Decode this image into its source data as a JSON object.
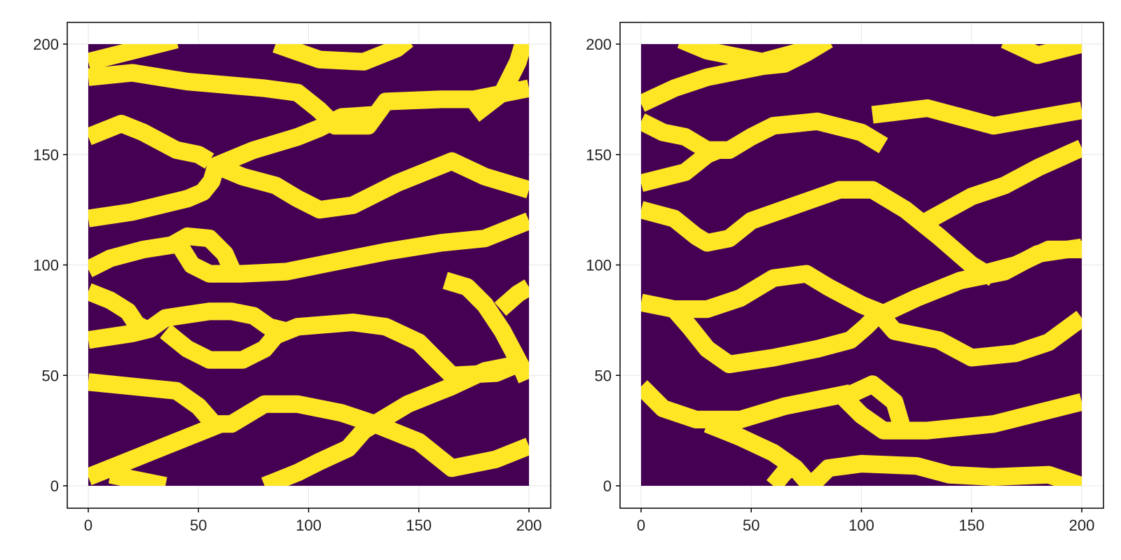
{
  "colors": {
    "background": "#ffffff",
    "matrix_zero": "#440154",
    "matrix_one": "#fde725",
    "grid": "#e6e6e6",
    "frame": "#000000"
  },
  "chart_data": [
    {
      "type": "heatmap",
      "title": "",
      "xlabel": "",
      "ylabel": "",
      "x_range": [
        0,
        200
      ],
      "y_range": [
        0,
        200
      ],
      "xlim": [
        -10,
        210
      ],
      "ylim": [
        -10,
        210
      ],
      "x_ticks": [
        "0",
        "50",
        "100",
        "150",
        "200"
      ],
      "y_ticks": [
        "0",
        "50",
        "100",
        "150",
        "200"
      ],
      "grid": true,
      "colormap": "viridis",
      "value_range": [
        0,
        1
      ],
      "band_width": 8,
      "channels": [
        [
          [
            0,
            192
          ],
          [
            20,
            197
          ],
          [
            40,
            202
          ]
        ],
        [
          [
            0,
            185
          ],
          [
            20,
            187
          ],
          [
            45,
            183
          ],
          [
            80,
            180
          ],
          [
            95,
            178
          ],
          [
            105,
            170
          ],
          [
            112,
            163
          ],
          [
            127,
            163
          ],
          [
            135,
            174
          ],
          [
            160,
            175
          ],
          [
            175,
            175
          ],
          [
            200,
            180
          ]
        ],
        [
          [
            85,
            200
          ],
          [
            105,
            193
          ],
          [
            125,
            192
          ],
          [
            140,
            198
          ],
          [
            145,
            202
          ]
        ],
        [
          [
            0,
            158
          ],
          [
            15,
            164
          ],
          [
            25,
            160
          ],
          [
            40,
            152
          ],
          [
            50,
            150
          ],
          [
            55,
            147
          ]
        ],
        [
          [
            0,
            121
          ],
          [
            20,
            124
          ],
          [
            45,
            130
          ],
          [
            52,
            133
          ],
          [
            56,
            138
          ],
          [
            58,
            145
          ],
          [
            75,
            152
          ],
          [
            95,
            158
          ],
          [
            105,
            162
          ],
          [
            115,
            167
          ],
          [
            130,
            168
          ]
        ],
        [
          [
            58,
            145
          ],
          [
            70,
            140
          ],
          [
            85,
            136
          ],
          [
            95,
            130
          ],
          [
            105,
            125
          ],
          [
            120,
            127
          ],
          [
            140,
            137
          ],
          [
            155,
            143
          ],
          [
            165,
            147
          ],
          [
            180,
            140
          ],
          [
            200,
            134
          ]
        ],
        [
          [
            175,
            168
          ],
          [
            188,
            178
          ],
          [
            195,
            192
          ],
          [
            198,
            202
          ]
        ],
        [
          [
            0,
            98
          ],
          [
            10,
            103
          ],
          [
            25,
            107
          ],
          [
            38,
            109
          ],
          [
            45,
            113
          ],
          [
            55,
            112
          ],
          [
            62,
            105
          ],
          [
            66,
            96
          ]
        ],
        [
          [
            42,
            108
          ],
          [
            47,
            100
          ],
          [
            55,
            96
          ],
          [
            70,
            96
          ],
          [
            90,
            97
          ],
          [
            110,
            101
          ],
          [
            135,
            106
          ],
          [
            160,
            110
          ],
          [
            180,
            112
          ],
          [
            200,
            120
          ]
        ],
        [
          [
            0,
            88
          ],
          [
            10,
            84
          ],
          [
            18,
            79
          ],
          [
            22,
            73
          ],
          [
            28,
            70
          ]
        ],
        [
          [
            0,
            66
          ],
          [
            20,
            69
          ],
          [
            28,
            71
          ],
          [
            35,
            76
          ],
          [
            55,
            79
          ],
          [
            65,
            79
          ],
          [
            75,
            77
          ],
          [
            82,
            72
          ],
          [
            90,
            70
          ]
        ],
        [
          [
            35,
            70
          ],
          [
            45,
            62
          ],
          [
            55,
            57
          ],
          [
            70,
            57
          ],
          [
            80,
            62
          ],
          [
            85,
            68
          ],
          [
            95,
            72
          ],
          [
            120,
            74
          ],
          [
            135,
            72
          ],
          [
            150,
            65
          ],
          [
            165,
            50
          ],
          [
            185,
            51
          ],
          [
            197,
            56
          ]
        ],
        [
          [
            162,
            93
          ],
          [
            172,
            90
          ],
          [
            180,
            82
          ],
          [
            188,
            70
          ],
          [
            196,
            55
          ],
          [
            199,
            48
          ]
        ],
        [
          [
            187,
            80
          ],
          [
            195,
            87
          ],
          [
            200,
            90
          ]
        ],
        [
          [
            0,
            47
          ],
          [
            20,
            45
          ],
          [
            40,
            43
          ],
          [
            50,
            36
          ],
          [
            57,
            28
          ],
          [
            65,
            28
          ],
          [
            80,
            37
          ],
          [
            95,
            37
          ],
          [
            115,
            33
          ],
          [
            130,
            28
          ],
          [
            150,
            20
          ],
          [
            165,
            8
          ],
          [
            185,
            12
          ],
          [
            200,
            18
          ]
        ],
        [
          [
            0,
            4
          ],
          [
            15,
            10
          ],
          [
            35,
            18
          ],
          [
            55,
            26
          ],
          [
            60,
            28
          ]
        ],
        [
          [
            80,
            0
          ],
          [
            95,
            6
          ],
          [
            105,
            11
          ],
          [
            118,
            17
          ],
          [
            125,
            25
          ],
          [
            130,
            28
          ],
          [
            145,
            37
          ],
          [
            165,
            45
          ],
          [
            180,
            52
          ],
          [
            195,
            55
          ]
        ],
        [
          [
            10,
            5
          ],
          [
            20,
            3
          ],
          [
            35,
            0
          ]
        ]
      ]
    },
    {
      "type": "heatmap",
      "title": "",
      "xlabel": "",
      "ylabel": "",
      "x_range": [
        0,
        200
      ],
      "y_range": [
        0,
        200
      ],
      "xlim": [
        -10,
        210
      ],
      "ylim": [
        -10,
        210
      ],
      "x_ticks": [
        "0",
        "50",
        "100",
        "150",
        "200"
      ],
      "y_ticks": [
        "0",
        "50",
        "100",
        "150",
        "200"
      ],
      "grid": true,
      "colormap": "viridis",
      "value_range": [
        0,
        1
      ],
      "band_width": 8,
      "channels": [
        [
          [
            18,
            202
          ],
          [
            30,
            197
          ],
          [
            45,
            194
          ],
          [
            55,
            192
          ],
          [
            70,
            196
          ],
          [
            80,
            200
          ]
        ],
        [
          [
            0,
            173
          ],
          [
            15,
            180
          ],
          [
            30,
            185
          ],
          [
            45,
            188
          ],
          [
            55,
            190
          ],
          [
            65,
            191
          ],
          [
            75,
            196
          ],
          [
            85,
            202
          ]
        ],
        [
          [
            0,
            165
          ],
          [
            10,
            160
          ],
          [
            20,
            158
          ],
          [
            30,
            152
          ],
          [
            40,
            152
          ],
          [
            50,
            158
          ],
          [
            60,
            163
          ],
          [
            80,
            165
          ],
          [
            100,
            160
          ],
          [
            110,
            154
          ]
        ],
        [
          [
            0,
            137
          ],
          [
            20,
            142
          ],
          [
            30,
            150
          ],
          [
            35,
            152
          ]
        ],
        [
          [
            105,
            168
          ],
          [
            130,
            171
          ],
          [
            160,
            163
          ],
          [
            200,
            170
          ]
        ],
        [
          [
            165,
            202
          ],
          [
            180,
            195
          ],
          [
            200,
            200
          ]
        ],
        [
          [
            0,
            125
          ],
          [
            15,
            121
          ],
          [
            25,
            113
          ],
          [
            30,
            110
          ],
          [
            40,
            112
          ],
          [
            50,
            120
          ],
          [
            70,
            127
          ],
          [
            90,
            134
          ],
          [
            105,
            134
          ],
          [
            120,
            125
          ],
          [
            135,
            113
          ],
          [
            150,
            100
          ],
          [
            160,
            94
          ]
        ],
        [
          [
            130,
            120
          ],
          [
            150,
            131
          ],
          [
            165,
            136
          ],
          [
            180,
            144
          ],
          [
            200,
            153
          ]
        ],
        [
          [
            155,
            96
          ],
          [
            170,
            100
          ],
          [
            185,
            107
          ],
          [
            200,
            107
          ]
        ],
        [
          [
            0,
            83
          ],
          [
            15,
            80
          ],
          [
            30,
            80
          ],
          [
            45,
            85
          ],
          [
            60,
            94
          ],
          [
            75,
            96
          ],
          [
            85,
            90
          ],
          [
            100,
            82
          ],
          [
            110,
            78
          ],
          [
            125,
            85
          ],
          [
            145,
            93
          ],
          [
            165,
            97
          ],
          [
            180,
            105
          ],
          [
            200,
            108
          ]
        ],
        [
          [
            15,
            80
          ],
          [
            22,
            72
          ],
          [
            30,
            62
          ],
          [
            40,
            55
          ],
          [
            60,
            58
          ],
          [
            80,
            62
          ],
          [
            95,
            66
          ],
          [
            102,
            72
          ],
          [
            108,
            78
          ],
          [
            115,
            70
          ],
          [
            135,
            66
          ],
          [
            150,
            58
          ],
          [
            170,
            60
          ],
          [
            185,
            65
          ],
          [
            200,
            76
          ]
        ],
        [
          [
            0,
            45
          ],
          [
            10,
            35
          ],
          [
            25,
            30
          ],
          [
            45,
            30
          ],
          [
            65,
            36
          ],
          [
            85,
            40
          ],
          [
            95,
            42
          ]
        ],
        [
          [
            92,
            40
          ],
          [
            100,
            32
          ],
          [
            110,
            25
          ],
          [
            130,
            25
          ],
          [
            160,
            28
          ],
          [
            180,
            33
          ],
          [
            200,
            38
          ]
        ],
        [
          [
            92,
            40
          ],
          [
            105,
            46
          ],
          [
            115,
            38
          ],
          [
            118,
            28
          ]
        ],
        [
          [
            30,
            28
          ],
          [
            45,
            22
          ],
          [
            60,
            15
          ],
          [
            70,
            8
          ],
          [
            77,
            0
          ]
        ],
        [
          [
            77,
            0
          ],
          [
            85,
            8
          ],
          [
            100,
            10
          ],
          [
            125,
            9
          ],
          [
            140,
            5
          ],
          [
            160,
            4
          ],
          [
            185,
            5
          ],
          [
            200,
            0
          ]
        ],
        [
          [
            60,
            0
          ],
          [
            65,
            6
          ],
          [
            70,
            10
          ]
        ]
      ]
    }
  ]
}
